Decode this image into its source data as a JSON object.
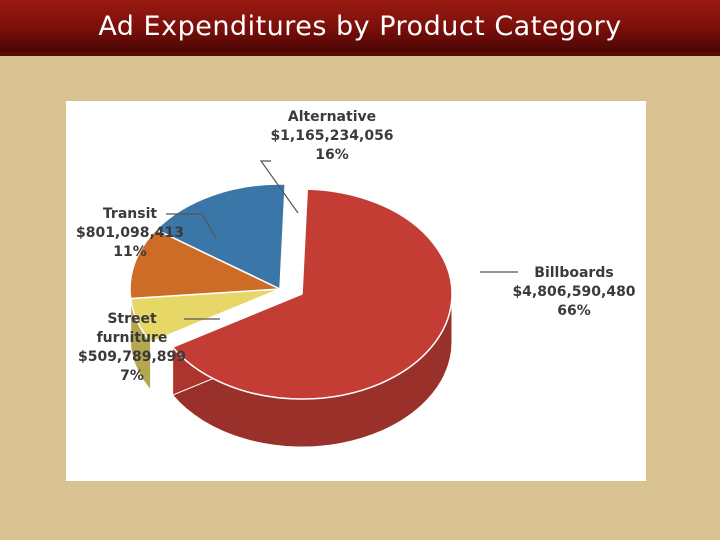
{
  "page": {
    "title": "Ad Expenditures by Product Category"
  },
  "chart_data": {
    "type": "pie",
    "title": "",
    "slices": [
      {
        "label": "Billboards",
        "amount": "$4,806,590,480",
        "percent": "66%",
        "value": 66,
        "color": "#c43d34",
        "exploded": true
      },
      {
        "label": "Street furniture",
        "amount": "$509,789,899",
        "percent": "7%",
        "value": 7,
        "color": "#e6d766",
        "exploded": false
      },
      {
        "label": "Transit",
        "amount": "$801,098,413",
        "percent": "11%",
        "value": 11,
        "color": "#cd6c27",
        "exploded": false
      },
      {
        "label": "Alternative",
        "amount": "$1,165,234,056",
        "percent": "16%",
        "value": 16,
        "color": "#3a77a8",
        "exploded": false
      }
    ],
    "legend": "none"
  }
}
